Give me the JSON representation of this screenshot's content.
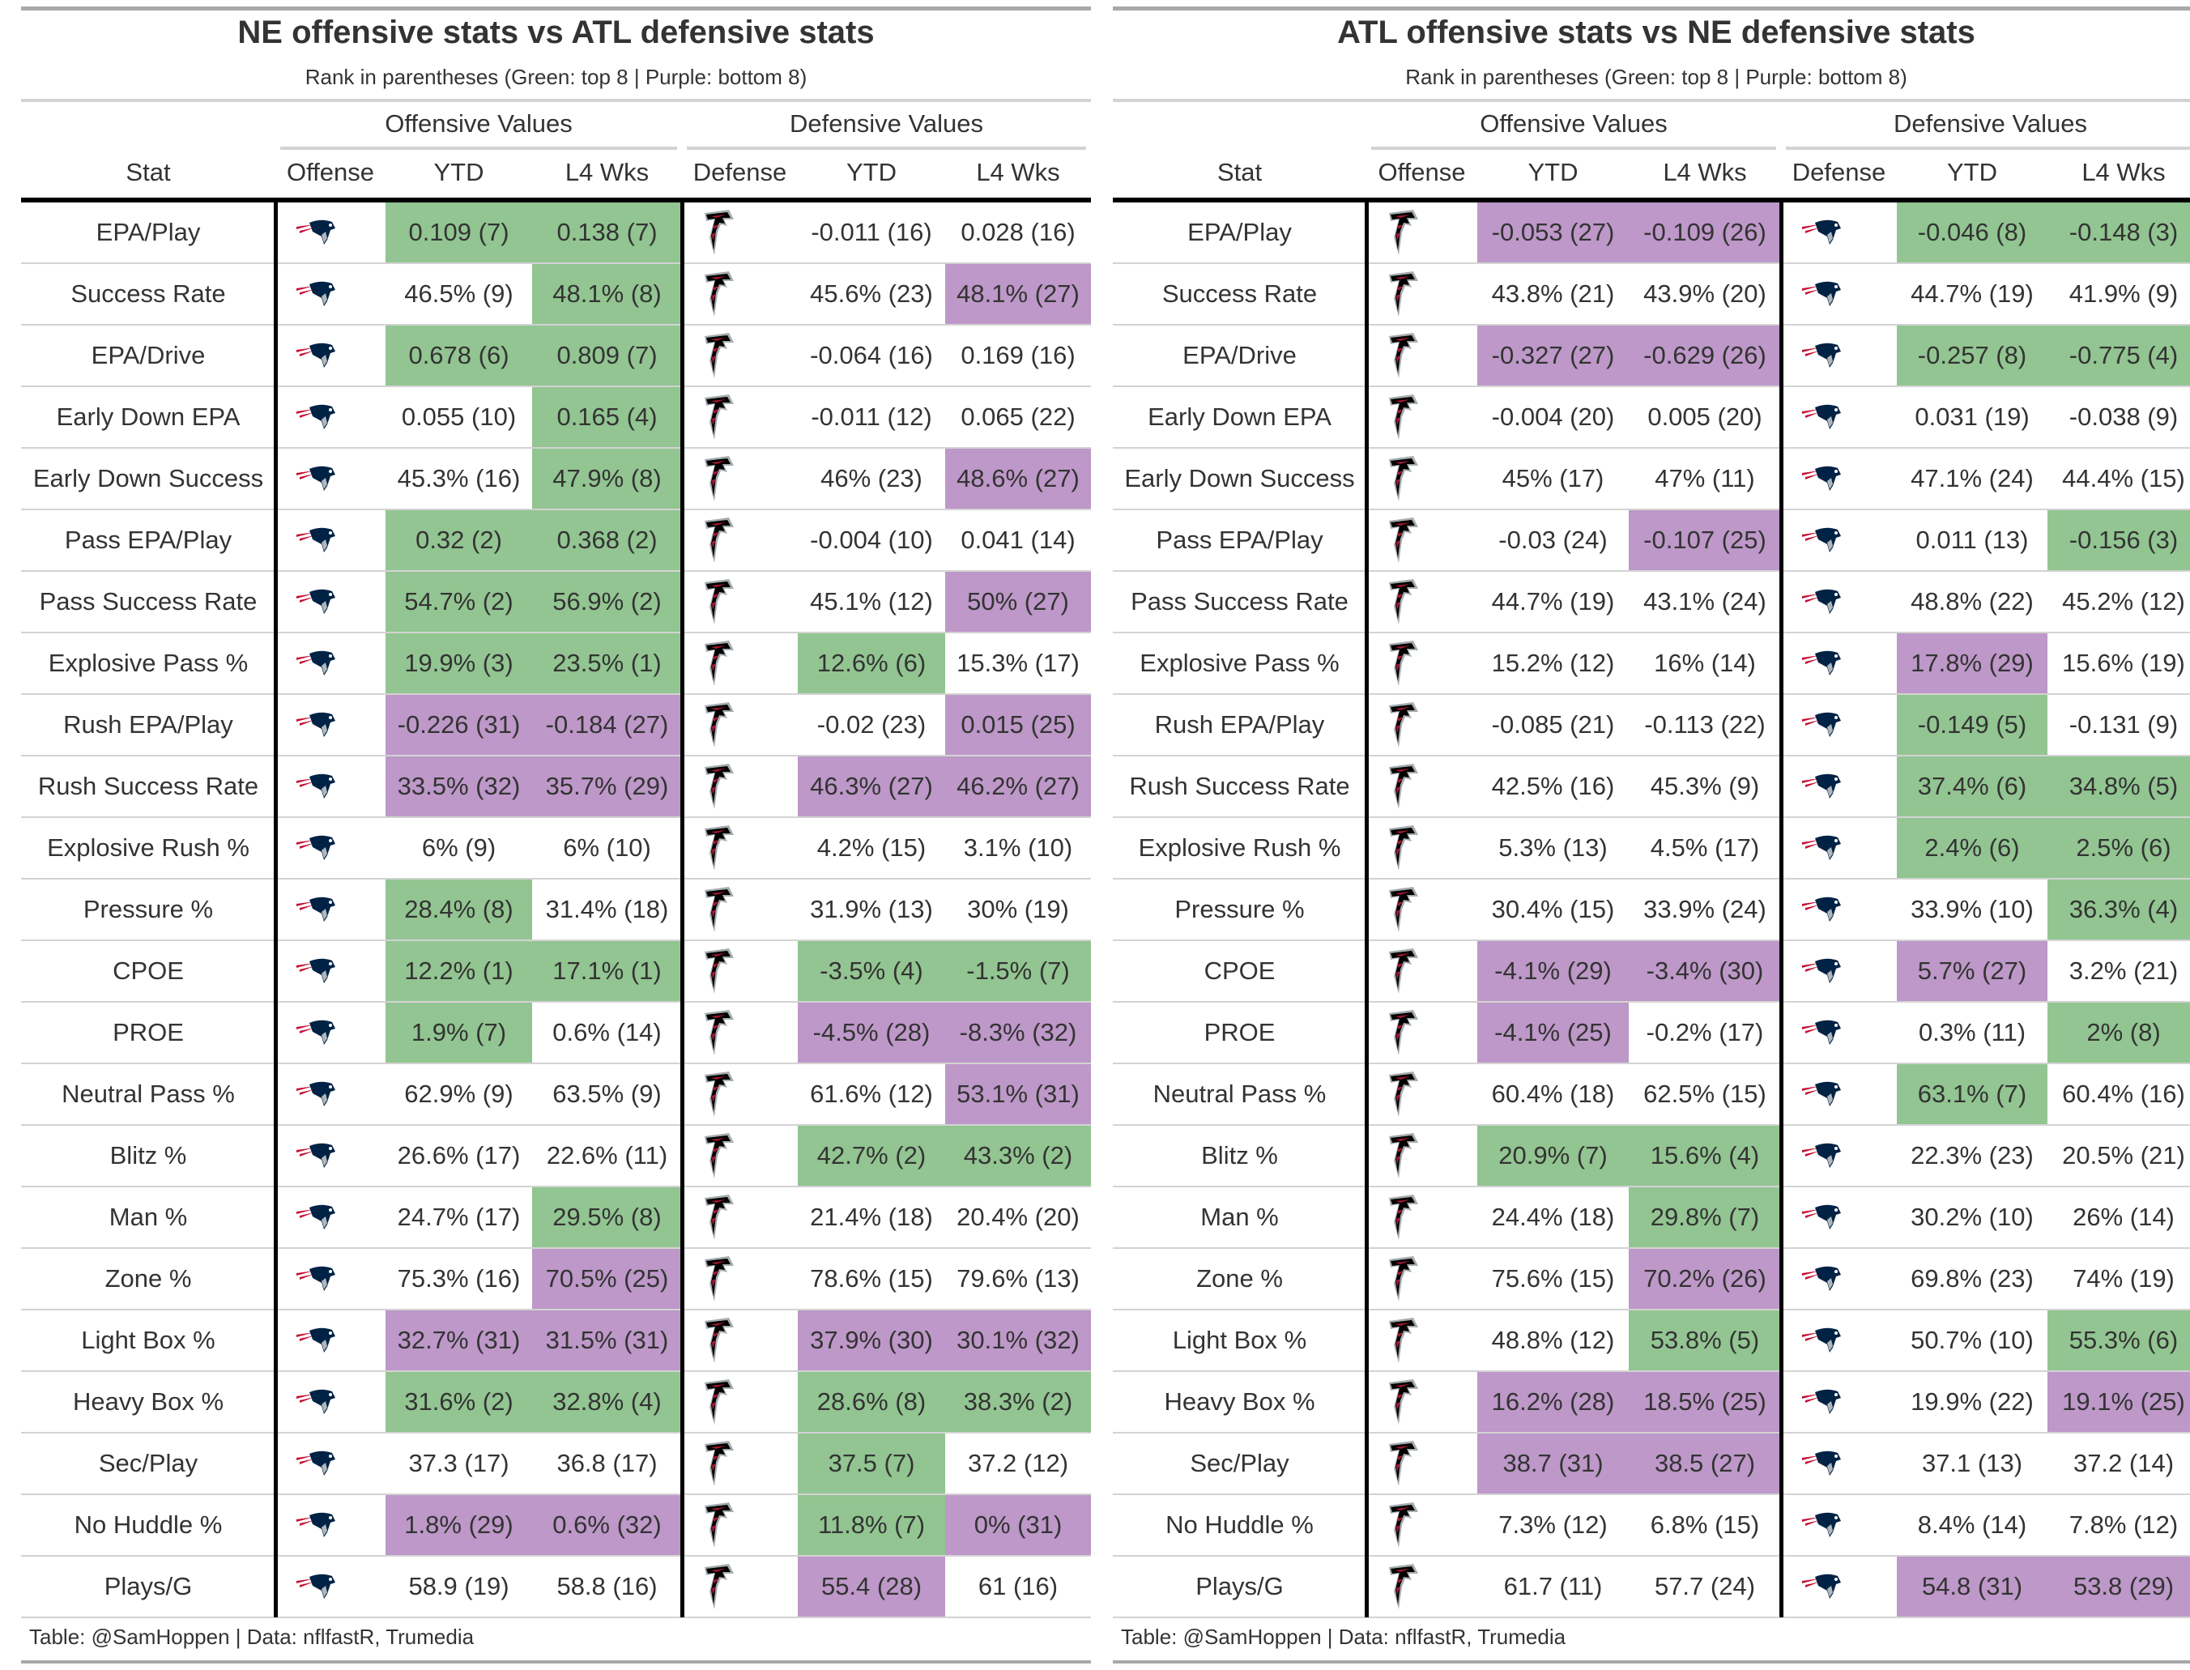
{
  "colors": {
    "green": "#92c591",
    "purple": "#bd98c8"
  },
  "tables": [
    {
      "title": "NE offensive stats vs ATL defensive stats",
      "subtitle": "Rank in parentheses (Green: top 8 | Purple: bottom 8)",
      "spanners": [
        "Offensive Values",
        "Defensive Values"
      ],
      "columns": [
        "Stat",
        "Offense",
        "YTD",
        "L4 Wks",
        "Defense",
        "YTD",
        "L4 Wks"
      ],
      "offense_logo": "patriots-logo-icon",
      "defense_logo": "falcons-logo-icon",
      "footer": "Table: @SamHoppen | Data: nflfastR, Trumedia",
      "rows": [
        {
          "stat": "EPA/Play",
          "cells": [
            [
              "0.109 (7)",
              "g"
            ],
            [
              "0.138 (7)",
              "g"
            ],
            [
              "-0.011 (16)",
              ""
            ],
            [
              "0.028 (16)",
              ""
            ]
          ]
        },
        {
          "stat": "Success Rate",
          "cells": [
            [
              "46.5% (9)",
              ""
            ],
            [
              "48.1% (8)",
              "g"
            ],
            [
              "45.6% (23)",
              ""
            ],
            [
              "48.1% (27)",
              "p"
            ]
          ]
        },
        {
          "stat": "EPA/Drive",
          "cells": [
            [
              "0.678 (6)",
              "g"
            ],
            [
              "0.809 (7)",
              "g"
            ],
            [
              "-0.064 (16)",
              ""
            ],
            [
              "0.169 (16)",
              ""
            ]
          ]
        },
        {
          "stat": "Early Down EPA",
          "cells": [
            [
              "0.055 (10)",
              ""
            ],
            [
              "0.165 (4)",
              "g"
            ],
            [
              "-0.011 (12)",
              ""
            ],
            [
              "0.065 (22)",
              ""
            ]
          ]
        },
        {
          "stat": "Early Down Success",
          "cells": [
            [
              "45.3% (16)",
              ""
            ],
            [
              "47.9% (8)",
              "g"
            ],
            [
              "46% (23)",
              ""
            ],
            [
              "48.6% (27)",
              "p"
            ]
          ]
        },
        {
          "stat": "Pass EPA/Play",
          "cells": [
            [
              "0.32 (2)",
              "g"
            ],
            [
              "0.368 (2)",
              "g"
            ],
            [
              "-0.004 (10)",
              ""
            ],
            [
              "0.041 (14)",
              ""
            ]
          ]
        },
        {
          "stat": "Pass Success Rate",
          "cells": [
            [
              "54.7% (2)",
              "g"
            ],
            [
              "56.9% (2)",
              "g"
            ],
            [
              "45.1% (12)",
              ""
            ],
            [
              "50% (27)",
              "p"
            ]
          ]
        },
        {
          "stat": "Explosive Pass %",
          "cells": [
            [
              "19.9% (3)",
              "g"
            ],
            [
              "23.5% (1)",
              "g"
            ],
            [
              "12.6% (6)",
              "g"
            ],
            [
              "15.3% (17)",
              ""
            ]
          ]
        },
        {
          "stat": "Rush EPA/Play",
          "cells": [
            [
              "-0.226 (31)",
              "p"
            ],
            [
              "-0.184 (27)",
              "p"
            ],
            [
              "-0.02 (23)",
              ""
            ],
            [
              "0.015 (25)",
              "p"
            ]
          ]
        },
        {
          "stat": "Rush Success Rate",
          "cells": [
            [
              "33.5% (32)",
              "p"
            ],
            [
              "35.7% (29)",
              "p"
            ],
            [
              "46.3% (27)",
              "p"
            ],
            [
              "46.2% (27)",
              "p"
            ]
          ]
        },
        {
          "stat": "Explosive Rush %",
          "cells": [
            [
              "6% (9)",
              ""
            ],
            [
              "6% (10)",
              ""
            ],
            [
              "4.2% (15)",
              ""
            ],
            [
              "3.1% (10)",
              ""
            ]
          ]
        },
        {
          "stat": "Pressure %",
          "cells": [
            [
              "28.4% (8)",
              "g"
            ],
            [
              "31.4% (18)",
              ""
            ],
            [
              "31.9% (13)",
              ""
            ],
            [
              "30% (19)",
              ""
            ]
          ]
        },
        {
          "stat": "CPOE",
          "cells": [
            [
              "12.2% (1)",
              "g"
            ],
            [
              "17.1% (1)",
              "g"
            ],
            [
              "-3.5% (4)",
              "g"
            ],
            [
              "-1.5% (7)",
              "g"
            ]
          ]
        },
        {
          "stat": "PROE",
          "cells": [
            [
              "1.9% (7)",
              "g"
            ],
            [
              "0.6% (14)",
              ""
            ],
            [
              "-4.5% (28)",
              "p"
            ],
            [
              "-8.3% (32)",
              "p"
            ]
          ]
        },
        {
          "stat": "Neutral Pass %",
          "cells": [
            [
              "62.9% (9)",
              ""
            ],
            [
              "63.5% (9)",
              ""
            ],
            [
              "61.6% (12)",
              ""
            ],
            [
              "53.1% (31)",
              "p"
            ]
          ]
        },
        {
          "stat": "Blitz %",
          "cells": [
            [
              "26.6% (17)",
              ""
            ],
            [
              "22.6% (11)",
              ""
            ],
            [
              "42.7% (2)",
              "g"
            ],
            [
              "43.3% (2)",
              "g"
            ]
          ]
        },
        {
          "stat": "Man %",
          "cells": [
            [
              "24.7% (17)",
              ""
            ],
            [
              "29.5% (8)",
              "g"
            ],
            [
              "21.4% (18)",
              ""
            ],
            [
              "20.4% (20)",
              ""
            ]
          ]
        },
        {
          "stat": "Zone %",
          "cells": [
            [
              "75.3% (16)",
              ""
            ],
            [
              "70.5% (25)",
              "p"
            ],
            [
              "78.6% (15)",
              ""
            ],
            [
              "79.6% (13)",
              ""
            ]
          ]
        },
        {
          "stat": "Light Box %",
          "cells": [
            [
              "32.7% (31)",
              "p"
            ],
            [
              "31.5% (31)",
              "p"
            ],
            [
              "37.9% (30)",
              "p"
            ],
            [
              "30.1% (32)",
              "p"
            ]
          ]
        },
        {
          "stat": "Heavy Box %",
          "cells": [
            [
              "31.6% (2)",
              "g"
            ],
            [
              "32.8% (4)",
              "g"
            ],
            [
              "28.6% (8)",
              "g"
            ],
            [
              "38.3% (2)",
              "g"
            ]
          ]
        },
        {
          "stat": "Sec/Play",
          "cells": [
            [
              "37.3 (17)",
              ""
            ],
            [
              "36.8 (17)",
              ""
            ],
            [
              "37.5 (7)",
              "g"
            ],
            [
              "37.2 (12)",
              ""
            ]
          ]
        },
        {
          "stat": "No Huddle %",
          "cells": [
            [
              "1.8% (29)",
              "p"
            ],
            [
              "0.6% (32)",
              "p"
            ],
            [
              "11.8% (7)",
              "g"
            ],
            [
              "0% (31)",
              "p"
            ]
          ]
        },
        {
          "stat": "Plays/G",
          "cells": [
            [
              "58.9 (19)",
              ""
            ],
            [
              "58.8 (16)",
              ""
            ],
            [
              "55.4 (28)",
              "p"
            ],
            [
              "61 (16)",
              ""
            ]
          ]
        }
      ]
    },
    {
      "title": "ATL offensive stats vs NE defensive stats",
      "subtitle": "Rank in parentheses (Green: top 8 | Purple: bottom 8)",
      "spanners": [
        "Offensive Values",
        "Defensive Values"
      ],
      "columns": [
        "Stat",
        "Offense",
        "YTD",
        "L4 Wks",
        "Defense",
        "YTD",
        "L4 Wks"
      ],
      "offense_logo": "falcons-logo-icon",
      "defense_logo": "patriots-logo-icon",
      "footer": "Table: @SamHoppen | Data: nflfastR, Trumedia",
      "rows": [
        {
          "stat": "EPA/Play",
          "cells": [
            [
              "-0.053 (27)",
              "p"
            ],
            [
              "-0.109 (26)",
              "p"
            ],
            [
              "-0.046 (8)",
              "g"
            ],
            [
              "-0.148 (3)",
              "g"
            ]
          ]
        },
        {
          "stat": "Success Rate",
          "cells": [
            [
              "43.8% (21)",
              ""
            ],
            [
              "43.9% (20)",
              ""
            ],
            [
              "44.7% (19)",
              ""
            ],
            [
              "41.9% (9)",
              ""
            ]
          ]
        },
        {
          "stat": "EPA/Drive",
          "cells": [
            [
              "-0.327 (27)",
              "p"
            ],
            [
              "-0.629 (26)",
              "p"
            ],
            [
              "-0.257 (8)",
              "g"
            ],
            [
              "-0.775 (4)",
              "g"
            ]
          ]
        },
        {
          "stat": "Early Down EPA",
          "cells": [
            [
              "-0.004 (20)",
              ""
            ],
            [
              "0.005 (20)",
              ""
            ],
            [
              "0.031 (19)",
              ""
            ],
            [
              "-0.038 (9)",
              ""
            ]
          ]
        },
        {
          "stat": "Early Down Success",
          "cells": [
            [
              "45% (17)",
              ""
            ],
            [
              "47% (11)",
              ""
            ],
            [
              "47.1% (24)",
              ""
            ],
            [
              "44.4% (15)",
              ""
            ]
          ]
        },
        {
          "stat": "Pass EPA/Play",
          "cells": [
            [
              "-0.03 (24)",
              ""
            ],
            [
              "-0.107 (25)",
              "p"
            ],
            [
              "0.011 (13)",
              ""
            ],
            [
              "-0.156 (3)",
              "g"
            ]
          ]
        },
        {
          "stat": "Pass Success Rate",
          "cells": [
            [
              "44.7% (19)",
              ""
            ],
            [
              "43.1% (24)",
              ""
            ],
            [
              "48.8% (22)",
              ""
            ],
            [
              "45.2% (12)",
              ""
            ]
          ]
        },
        {
          "stat": "Explosive Pass %",
          "cells": [
            [
              "15.2% (12)",
              ""
            ],
            [
              "16% (14)",
              ""
            ],
            [
              "17.8% (29)",
              "p"
            ],
            [
              "15.6% (19)",
              ""
            ]
          ]
        },
        {
          "stat": "Rush EPA/Play",
          "cells": [
            [
              "-0.085 (21)",
              ""
            ],
            [
              "-0.113 (22)",
              ""
            ],
            [
              "-0.149 (5)",
              "g"
            ],
            [
              "-0.131 (9)",
              ""
            ]
          ]
        },
        {
          "stat": "Rush Success Rate",
          "cells": [
            [
              "42.5% (16)",
              ""
            ],
            [
              "45.3% (9)",
              ""
            ],
            [
              "37.4% (6)",
              "g"
            ],
            [
              "34.8% (5)",
              "g"
            ]
          ]
        },
        {
          "stat": "Explosive Rush %",
          "cells": [
            [
              "5.3% (13)",
              ""
            ],
            [
              "4.5% (17)",
              ""
            ],
            [
              "2.4% (6)",
              "g"
            ],
            [
              "2.5% (6)",
              "g"
            ]
          ]
        },
        {
          "stat": "Pressure %",
          "cells": [
            [
              "30.4% (15)",
              ""
            ],
            [
              "33.9% (24)",
              ""
            ],
            [
              "33.9% (10)",
              ""
            ],
            [
              "36.3% (4)",
              "g"
            ]
          ]
        },
        {
          "stat": "CPOE",
          "cells": [
            [
              "-4.1% (29)",
              "p"
            ],
            [
              "-3.4% (30)",
              "p"
            ],
            [
              "5.7% (27)",
              "p"
            ],
            [
              "3.2% (21)",
              ""
            ]
          ]
        },
        {
          "stat": "PROE",
          "cells": [
            [
              "-4.1% (25)",
              "p"
            ],
            [
              "-0.2% (17)",
              ""
            ],
            [
              "0.3% (11)",
              ""
            ],
            [
              "2% (8)",
              "g"
            ]
          ]
        },
        {
          "stat": "Neutral Pass %",
          "cells": [
            [
              "60.4% (18)",
              ""
            ],
            [
              "62.5% (15)",
              ""
            ],
            [
              "63.1% (7)",
              "g"
            ],
            [
              "60.4% (16)",
              ""
            ]
          ]
        },
        {
          "stat": "Blitz %",
          "cells": [
            [
              "20.9% (7)",
              "g"
            ],
            [
              "15.6% (4)",
              "g"
            ],
            [
              "22.3% (23)",
              ""
            ],
            [
              "20.5% (21)",
              ""
            ]
          ]
        },
        {
          "stat": "Man %",
          "cells": [
            [
              "24.4% (18)",
              ""
            ],
            [
              "29.8% (7)",
              "g"
            ],
            [
              "30.2% (10)",
              ""
            ],
            [
              "26% (14)",
              ""
            ]
          ]
        },
        {
          "stat": "Zone %",
          "cells": [
            [
              "75.6% (15)",
              ""
            ],
            [
              "70.2% (26)",
              "p"
            ],
            [
              "69.8% (23)",
              ""
            ],
            [
              "74% (19)",
              ""
            ]
          ]
        },
        {
          "stat": "Light Box %",
          "cells": [
            [
              "48.8% (12)",
              ""
            ],
            [
              "53.8% (5)",
              "g"
            ],
            [
              "50.7% (10)",
              ""
            ],
            [
              "55.3% (6)",
              "g"
            ]
          ]
        },
        {
          "stat": "Heavy Box %",
          "cells": [
            [
              "16.2% (28)",
              "p"
            ],
            [
              "18.5% (25)",
              "p"
            ],
            [
              "19.9% (22)",
              ""
            ],
            [
              "19.1% (25)",
              "p"
            ]
          ]
        },
        {
          "stat": "Sec/Play",
          "cells": [
            [
              "38.7 (31)",
              "p"
            ],
            [
              "38.5 (27)",
              "p"
            ],
            [
              "37.1 (13)",
              ""
            ],
            [
              "37.2 (14)",
              ""
            ]
          ]
        },
        {
          "stat": "No Huddle %",
          "cells": [
            [
              "7.3% (12)",
              ""
            ],
            [
              "6.8% (15)",
              ""
            ],
            [
              "8.4% (14)",
              ""
            ],
            [
              "7.8% (12)",
              ""
            ]
          ]
        },
        {
          "stat": "Plays/G",
          "cells": [
            [
              "61.7 (11)",
              ""
            ],
            [
              "57.7 (24)",
              ""
            ],
            [
              "54.8 (31)",
              "p"
            ],
            [
              "53.8 (29)",
              "p"
            ]
          ]
        }
      ]
    }
  ]
}
